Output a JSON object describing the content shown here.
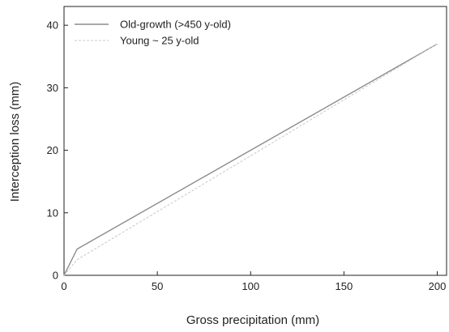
{
  "chart_data": {
    "type": "line",
    "title": "",
    "xlabel": "Gross precipitation (mm)",
    "ylabel": "Interception loss (mm)",
    "xlim": [
      0,
      205
    ],
    "ylim": [
      0,
      43
    ],
    "xticks": [
      0,
      50,
      100,
      150,
      200
    ],
    "yticks": [
      0,
      10,
      20,
      30,
      40
    ],
    "grid": false,
    "legend_position": "top-left",
    "series": [
      {
        "name": "Old-growth (>450 y-old)",
        "color": "#8c8c8c",
        "dash": "solid",
        "x": [
          0,
          7,
          200
        ],
        "y": [
          0,
          4.2,
          37
        ]
      },
      {
        "name": "Young ~ 25 y-old",
        "color": "#c8c8c8",
        "dash": "dashed",
        "x": [
          0,
          7,
          200
        ],
        "y": [
          0,
          2.5,
          37
        ]
      }
    ]
  }
}
